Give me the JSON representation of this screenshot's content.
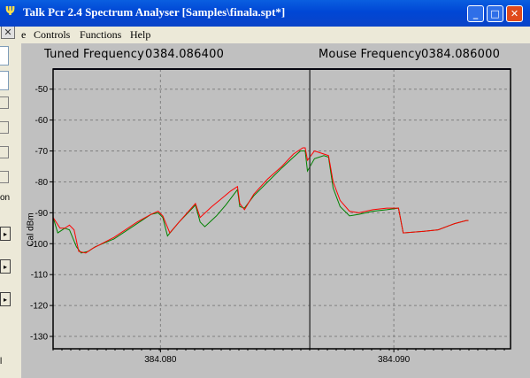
{
  "window": {
    "title": "Talk Pcr 2.4 Spectrum Analyser [Samples\\finala.spt*]",
    "app_icon": "antenna-icon",
    "buttons": {
      "minimize": "_",
      "maximize": "□",
      "close": "✕"
    }
  },
  "menu": {
    "items": [
      "e",
      "Controls",
      "Functions",
      "Help"
    ]
  },
  "background_window": {
    "close_glyph": "✕",
    "text_1": "on",
    "text_2": "l",
    "arrow": "▸"
  },
  "header": {
    "tuned_label": "Tuned Frequency",
    "tuned_value": "0384.086400",
    "mouse_label": "Mouse Frequency",
    "mouse_value": "0384.086000"
  },
  "chart_data": {
    "type": "line",
    "ylabel": "Cal dBm",
    "xlabel": "",
    "ylim": [
      -134,
      -43.5
    ],
    "xlim": [
      384.0754,
      384.095
    ],
    "y_ticks": [
      -50,
      -60,
      -70,
      -80,
      -90,
      -100,
      -110,
      -120,
      -130
    ],
    "x_ticks": [
      384.08,
      384.09
    ],
    "x_tick_labels": [
      "384.080",
      "384.090"
    ],
    "grid": true,
    "cursor_x": 384.0864,
    "colors": {
      "series_red": "#ff0000",
      "series_green": "#008000",
      "cursor": "#404040",
      "grid": "#808080",
      "plot_bg": "#c0c0c0"
    },
    "series": [
      {
        "color": "red",
        "points": [
          [
            384.0754,
            -91.5
          ],
          [
            384.0757,
            -95
          ],
          [
            384.0759,
            -95
          ],
          [
            384.0761,
            -94
          ],
          [
            384.0763,
            -95.5
          ],
          [
            384.0765,
            -102.5
          ],
          [
            384.0768,
            -103
          ],
          [
            384.0771,
            -101.5
          ],
          [
            384.078,
            -98
          ],
          [
            384.079,
            -93
          ],
          [
            384.0796,
            -90.5
          ],
          [
            384.0799,
            -89.5
          ],
          [
            384.0801,
            -91
          ],
          [
            384.0804,
            -96.5
          ],
          [
            384.0808,
            -93
          ],
          [
            384.0815,
            -87
          ],
          [
            384.0817,
            -91.5
          ],
          [
            384.0822,
            -88
          ],
          [
            384.0826,
            -85.5
          ],
          [
            384.083,
            -83
          ],
          [
            384.0833,
            -81.5
          ],
          [
            384.0834,
            -87
          ],
          [
            384.0836,
            -89
          ],
          [
            384.084,
            -84
          ],
          [
            384.0846,
            -79
          ],
          [
            384.0852,
            -75
          ],
          [
            384.0857,
            -71
          ],
          [
            384.0861,
            -69
          ],
          [
            384.0862,
            -69
          ],
          [
            384.0863,
            -73
          ],
          [
            384.0866,
            -70
          ],
          [
            384.087,
            -71
          ],
          [
            384.0872,
            -71.5
          ],
          [
            384.0874,
            -80
          ],
          [
            384.0877,
            -86
          ],
          [
            384.0881,
            -89.5
          ],
          [
            384.0885,
            -90
          ],
          [
            384.0891,
            -89
          ],
          [
            384.0897,
            -88.5
          ],
          [
            384.0902,
            -88.5
          ],
          [
            384.0904,
            -96.5
          ],
          [
            384.0913,
            -96
          ],
          [
            384.0919,
            -95.5
          ],
          [
            384.0926,
            -93.5
          ],
          [
            384.0931,
            -92.5
          ],
          [
            384.0932,
            -92.5
          ]
        ]
      },
      {
        "color": "green",
        "points": [
          [
            384.0754,
            -91.5
          ],
          [
            384.0756,
            -96.5
          ],
          [
            384.0759,
            -95
          ],
          [
            384.0761,
            -95.5
          ],
          [
            384.0764,
            -101
          ],
          [
            384.0766,
            -103
          ],
          [
            384.0769,
            -102.5
          ],
          [
            384.0772,
            -101
          ],
          [
            384.078,
            -98.5
          ],
          [
            384.079,
            -93.5
          ],
          [
            384.0796,
            -90.5
          ],
          [
            384.0799,
            -90
          ],
          [
            384.0801,
            -91.5
          ],
          [
            384.0803,
            -97.5
          ],
          [
            384.0808,
            -93
          ],
          [
            384.0815,
            -87.5
          ],
          [
            384.0817,
            -93
          ],
          [
            384.0819,
            -94.5
          ],
          [
            384.0824,
            -91
          ],
          [
            384.0828,
            -87.5
          ],
          [
            384.0833,
            -82.5
          ],
          [
            384.0834,
            -88
          ],
          [
            384.0836,
            -88.5
          ],
          [
            384.084,
            -84.5
          ],
          [
            384.0846,
            -80
          ],
          [
            384.0852,
            -75.5
          ],
          [
            384.0857,
            -72
          ],
          [
            384.086,
            -70
          ],
          [
            384.0862,
            -70
          ],
          [
            384.0863,
            -76.5
          ],
          [
            384.0866,
            -72.5
          ],
          [
            384.087,
            -71.5
          ],
          [
            384.0872,
            -72
          ],
          [
            384.0874,
            -82
          ],
          [
            384.0877,
            -88
          ],
          [
            384.0881,
            -91
          ],
          [
            384.0885,
            -90.5
          ],
          [
            384.0891,
            -89.5
          ],
          [
            384.0897,
            -89
          ],
          [
            384.0902,
            -88.5
          ],
          [
            384.0904,
            -96.5
          ],
          [
            384.0913,
            -96
          ],
          [
            384.0919,
            -95.5
          ],
          [
            384.0926,
            -93.5
          ],
          [
            384.0931,
            -92.5
          ],
          [
            384.0932,
            -92.5
          ]
        ]
      }
    ]
  }
}
